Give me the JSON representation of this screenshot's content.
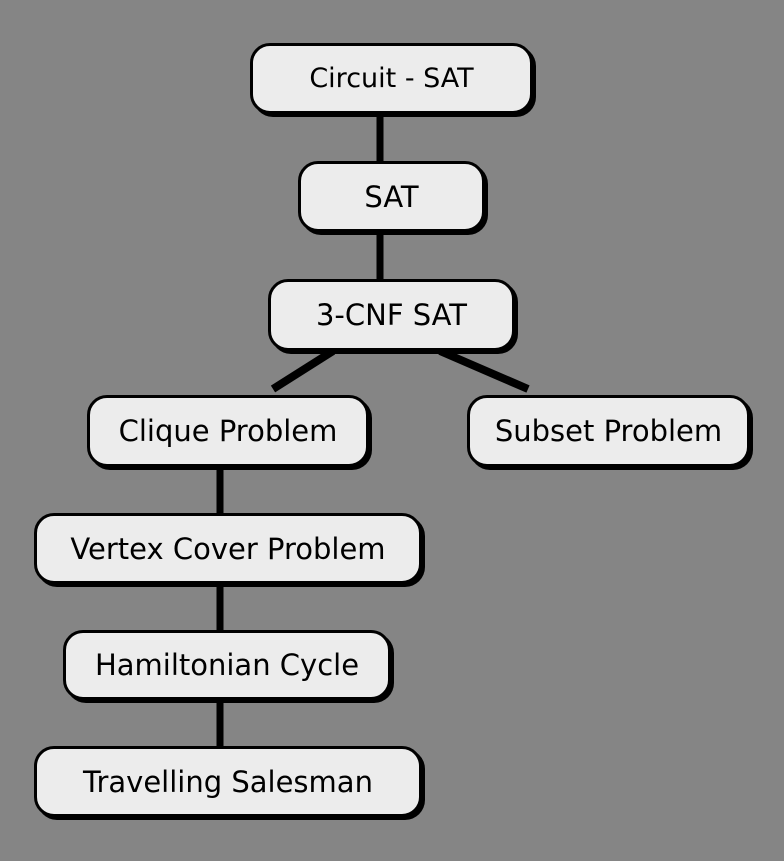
{
  "diagram": {
    "nodes": [
      {
        "id": "circuit_sat",
        "label": "Circuit - SAT"
      },
      {
        "id": "sat",
        "label": "SAT"
      },
      {
        "id": "cnf3_sat",
        "label": "3-CNF SAT"
      },
      {
        "id": "clique",
        "label": "Clique Problem"
      },
      {
        "id": "subset",
        "label": "Subset Problem"
      },
      {
        "id": "vertex_cover",
        "label": "Vertex Cover Problem"
      },
      {
        "id": "hamiltonian",
        "label": "Hamiltonian Cycle"
      },
      {
        "id": "tsp",
        "label": "Travelling Salesman"
      }
    ],
    "edges": [
      {
        "from": "circuit_sat",
        "to": "sat"
      },
      {
        "from": "sat",
        "to": "cnf3_sat"
      },
      {
        "from": "cnf3_sat",
        "to": "clique"
      },
      {
        "from": "cnf3_sat",
        "to": "subset"
      },
      {
        "from": "clique",
        "to": "vertex_cover"
      },
      {
        "from": "vertex_cover",
        "to": "hamiltonian"
      },
      {
        "from": "hamiltonian",
        "to": "tsp"
      }
    ],
    "colors": {
      "background": "#858585",
      "node_fill": "#ececec",
      "node_border": "#000000",
      "edge": "#000000"
    }
  }
}
